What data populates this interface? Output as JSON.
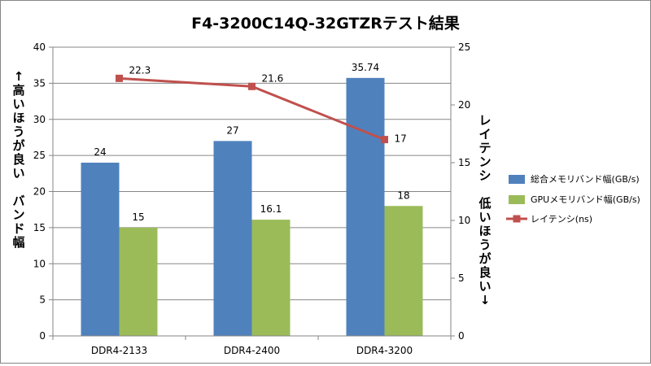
{
  "chart_data": {
    "type": "bar",
    "title": "F4-3200C14Q-32GTZRテスト結果",
    "categories": [
      "DDR4-2133",
      "DDR4-2400",
      "DDR4-3200"
    ],
    "ylabel": "↑高いほうが良い　バンド幅",
    "y2label": "レイテンシ　低いほうが良い↓",
    "ylim": [
      0,
      40
    ],
    "y2lim": [
      0,
      25
    ],
    "yticks": [
      0,
      5,
      10,
      15,
      20,
      25,
      30,
      35,
      40
    ],
    "y2ticks": [
      0,
      5,
      10,
      15,
      20,
      25
    ],
    "grid": "horizontal",
    "legend_position": "right",
    "series": [
      {
        "name": "総合メモリバンド幅(GB/s)",
        "kind": "bar",
        "axis": "left",
        "color": "#4F81BD",
        "values": [
          24,
          27,
          35.74
        ],
        "labels": [
          "24",
          "27",
          "35.74"
        ]
      },
      {
        "name": "GPUメモリバンド幅(GB/s)",
        "kind": "bar",
        "axis": "left",
        "color": "#9BBB59",
        "values": [
          15,
          16.1,
          18
        ],
        "labels": [
          "15",
          "16.1",
          "18"
        ]
      },
      {
        "name": "レイテンシ(ns)",
        "kind": "line",
        "axis": "right",
        "color": "#C0504D",
        "marker": "square",
        "values": [
          22.3,
          21.6,
          17
        ],
        "labels": [
          "22.3",
          "21.6",
          "17"
        ]
      }
    ]
  }
}
